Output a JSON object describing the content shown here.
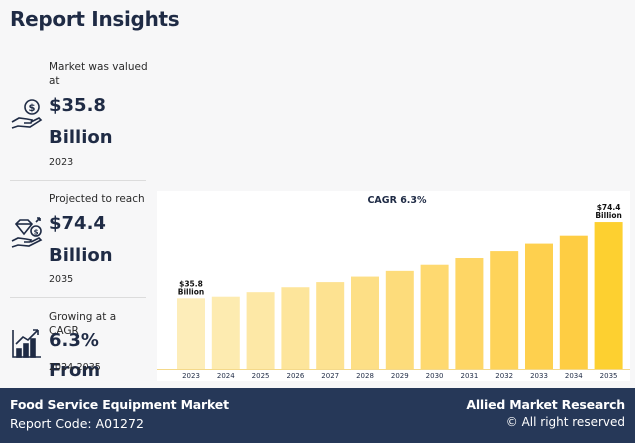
{
  "title": "Report Insights",
  "stats": [
    {
      "label": "Market was valued at",
      "value_line1": "$35.8",
      "value_line2": "Billion",
      "sub": "2023",
      "icon": "money-hand-icon"
    },
    {
      "label": "Projected to reach",
      "value_line1": "$74.4",
      "value_line2": "Billion",
      "sub": "2035",
      "icon": "diamond-hand-icon"
    },
    {
      "label": "Growing at a CAGR",
      "value_line1": "6.3% From",
      "sub": "2024-2035",
      "icon": "growth-chart-icon"
    }
  ],
  "chart_data": {
    "type": "bar",
    "title": "CAGR 6.3%",
    "categories": [
      "2023",
      "2024",
      "2025",
      "2026",
      "2027",
      "2028",
      "2029",
      "2030",
      "2031",
      "2032",
      "2033",
      "2034",
      "2035"
    ],
    "values": [
      35.8,
      36.6,
      38.9,
      41.4,
      44.0,
      46.8,
      49.7,
      52.8,
      56.2,
      59.7,
      63.5,
      67.5,
      74.4
    ],
    "annotations": [
      {
        "category": "2023",
        "line1": "$35.8",
        "line2": "Billion"
      },
      {
        "category": "2035",
        "line1": "$74.4",
        "line2": "Billion"
      }
    ],
    "colors": [
      "#fdedb9",
      "#fdebb0",
      "#fde8a6",
      "#fde59b",
      "#fde291",
      "#fddf86",
      "#fddc7b",
      "#fed970",
      "#fed665",
      "#fed35a",
      "#fed04e",
      "#fecd43",
      "#fdd030"
    ],
    "ylim": [
      0,
      80
    ]
  },
  "footer": {
    "market": "Food Service Equipment Market",
    "code": "Report Code: A01272",
    "brand": "Allied Market Research",
    "rights": "© All right reserved"
  }
}
